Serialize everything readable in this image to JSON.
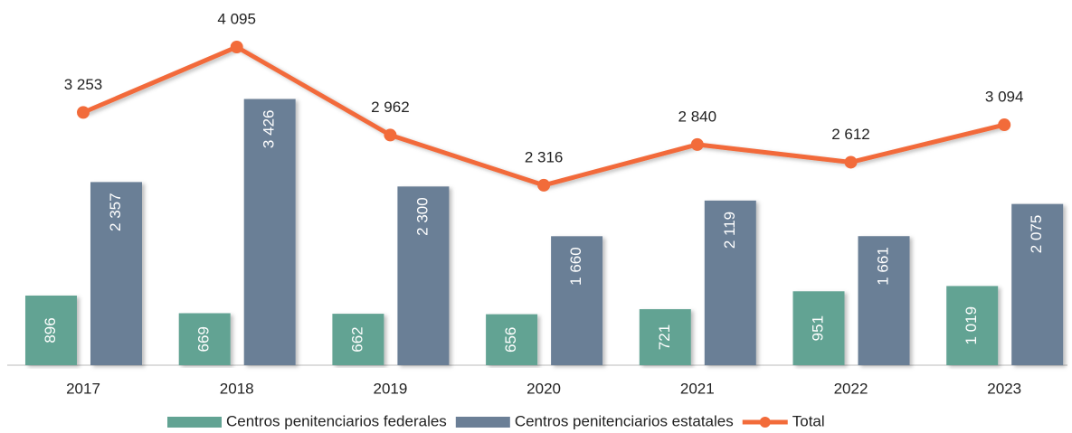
{
  "chart_data": {
    "type": "bar-line",
    "categories": [
      "2017",
      "2018",
      "2019",
      "2020",
      "2021",
      "2022",
      "2023"
    ],
    "ylim": [
      0,
      4700
    ],
    "series": [
      {
        "name": "Centros penitenciarios federales",
        "type": "bar",
        "color": "#62a393",
        "values": [
          896,
          669,
          662,
          656,
          721,
          951,
          1019
        ],
        "value_labels": [
          "896",
          "669",
          "662",
          "656",
          "721",
          "951",
          "1 019"
        ]
      },
      {
        "name": "Centros penitenciarios estatales",
        "type": "bar",
        "color": "#6b7f96",
        "values": [
          2357,
          3426,
          2300,
          1660,
          2119,
          1661,
          2075
        ],
        "value_labels": [
          "2 357",
          "3 426",
          "2 300",
          "1 660",
          "2 119",
          "1 661",
          "2 075"
        ]
      },
      {
        "name": "Total",
        "type": "line",
        "color": "#f26b3a",
        "values": [
          3253,
          4095,
          2962,
          2316,
          2840,
          2612,
          3094
        ],
        "value_labels": [
          "3 253",
          "4 095",
          "2 962",
          "2 316",
          "2 840",
          "2 612",
          "3 094"
        ]
      }
    ]
  }
}
